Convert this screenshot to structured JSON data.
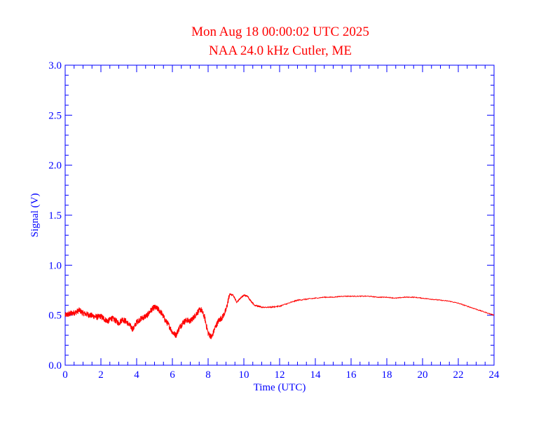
{
  "chart_data": {
    "type": "line",
    "title": "Mon Aug 18 00:00:02 UTC 2025",
    "subtitle": "NAA 24.0 kHz Cutler, ME",
    "xlabel": "Time (UTC)",
    "ylabel": "Signal (V)",
    "xlim": [
      0,
      24
    ],
    "ylim": [
      0.0,
      3.0
    ],
    "x_ticks": [
      0,
      2,
      4,
      6,
      8,
      10,
      12,
      14,
      16,
      18,
      20,
      22,
      24
    ],
    "x_tick_labels": [
      "0",
      "2",
      "4",
      "6",
      "8",
      "10",
      "12",
      "14",
      "16",
      "18",
      "20",
      "22",
      "24"
    ],
    "y_ticks": [
      0.0,
      0.5,
      1.0,
      1.5,
      2.0,
      2.5,
      3.0
    ],
    "y_tick_labels": [
      "0.0",
      "0.5",
      "1.0",
      "1.5",
      "2.0",
      "2.5",
      "3.0"
    ],
    "grid": false,
    "series": [
      {
        "color": "#ff0000",
        "x": [
          0.0,
          0.2,
          0.4,
          0.6,
          0.8,
          1.0,
          1.2,
          1.4,
          1.6,
          1.8,
          2.0,
          2.2,
          2.4,
          2.6,
          2.8,
          3.0,
          3.2,
          3.4,
          3.6,
          3.8,
          4.0,
          4.2,
          4.4,
          4.6,
          4.8,
          5.0,
          5.2,
          5.4,
          5.6,
          5.8,
          6.0,
          6.2,
          6.4,
          6.6,
          6.8,
          7.0,
          7.2,
          7.4,
          7.6,
          7.8,
          8.0,
          8.2,
          8.4,
          8.6,
          8.8,
          9.0,
          9.2,
          9.4,
          9.6,
          9.8,
          10.0,
          10.2,
          10.4,
          10.6,
          10.8,
          11.0,
          11.5,
          12.0,
          12.5,
          13.0,
          13.5,
          14.0,
          14.5,
          15.0,
          15.5,
          16.0,
          16.5,
          17.0,
          17.5,
          18.0,
          18.5,
          19.0,
          19.5,
          20.0,
          20.5,
          21.0,
          21.5,
          22.0,
          22.5,
          23.0,
          23.5,
          24.0
        ],
        "y": [
          0.5,
          0.51,
          0.52,
          0.53,
          0.55,
          0.52,
          0.51,
          0.5,
          0.49,
          0.48,
          0.49,
          0.46,
          0.44,
          0.47,
          0.45,
          0.42,
          0.46,
          0.44,
          0.4,
          0.36,
          0.43,
          0.46,
          0.48,
          0.5,
          0.55,
          0.58,
          0.56,
          0.52,
          0.45,
          0.4,
          0.33,
          0.3,
          0.38,
          0.43,
          0.45,
          0.44,
          0.48,
          0.53,
          0.56,
          0.48,
          0.32,
          0.28,
          0.38,
          0.45,
          0.48,
          0.55,
          0.71,
          0.7,
          0.63,
          0.67,
          0.7,
          0.69,
          0.64,
          0.6,
          0.59,
          0.58,
          0.58,
          0.59,
          0.62,
          0.65,
          0.66,
          0.67,
          0.68,
          0.68,
          0.69,
          0.69,
          0.69,
          0.69,
          0.68,
          0.68,
          0.67,
          0.68,
          0.68,
          0.67,
          0.66,
          0.65,
          0.64,
          0.62,
          0.59,
          0.56,
          0.53,
          0.5
        ]
      }
    ]
  }
}
